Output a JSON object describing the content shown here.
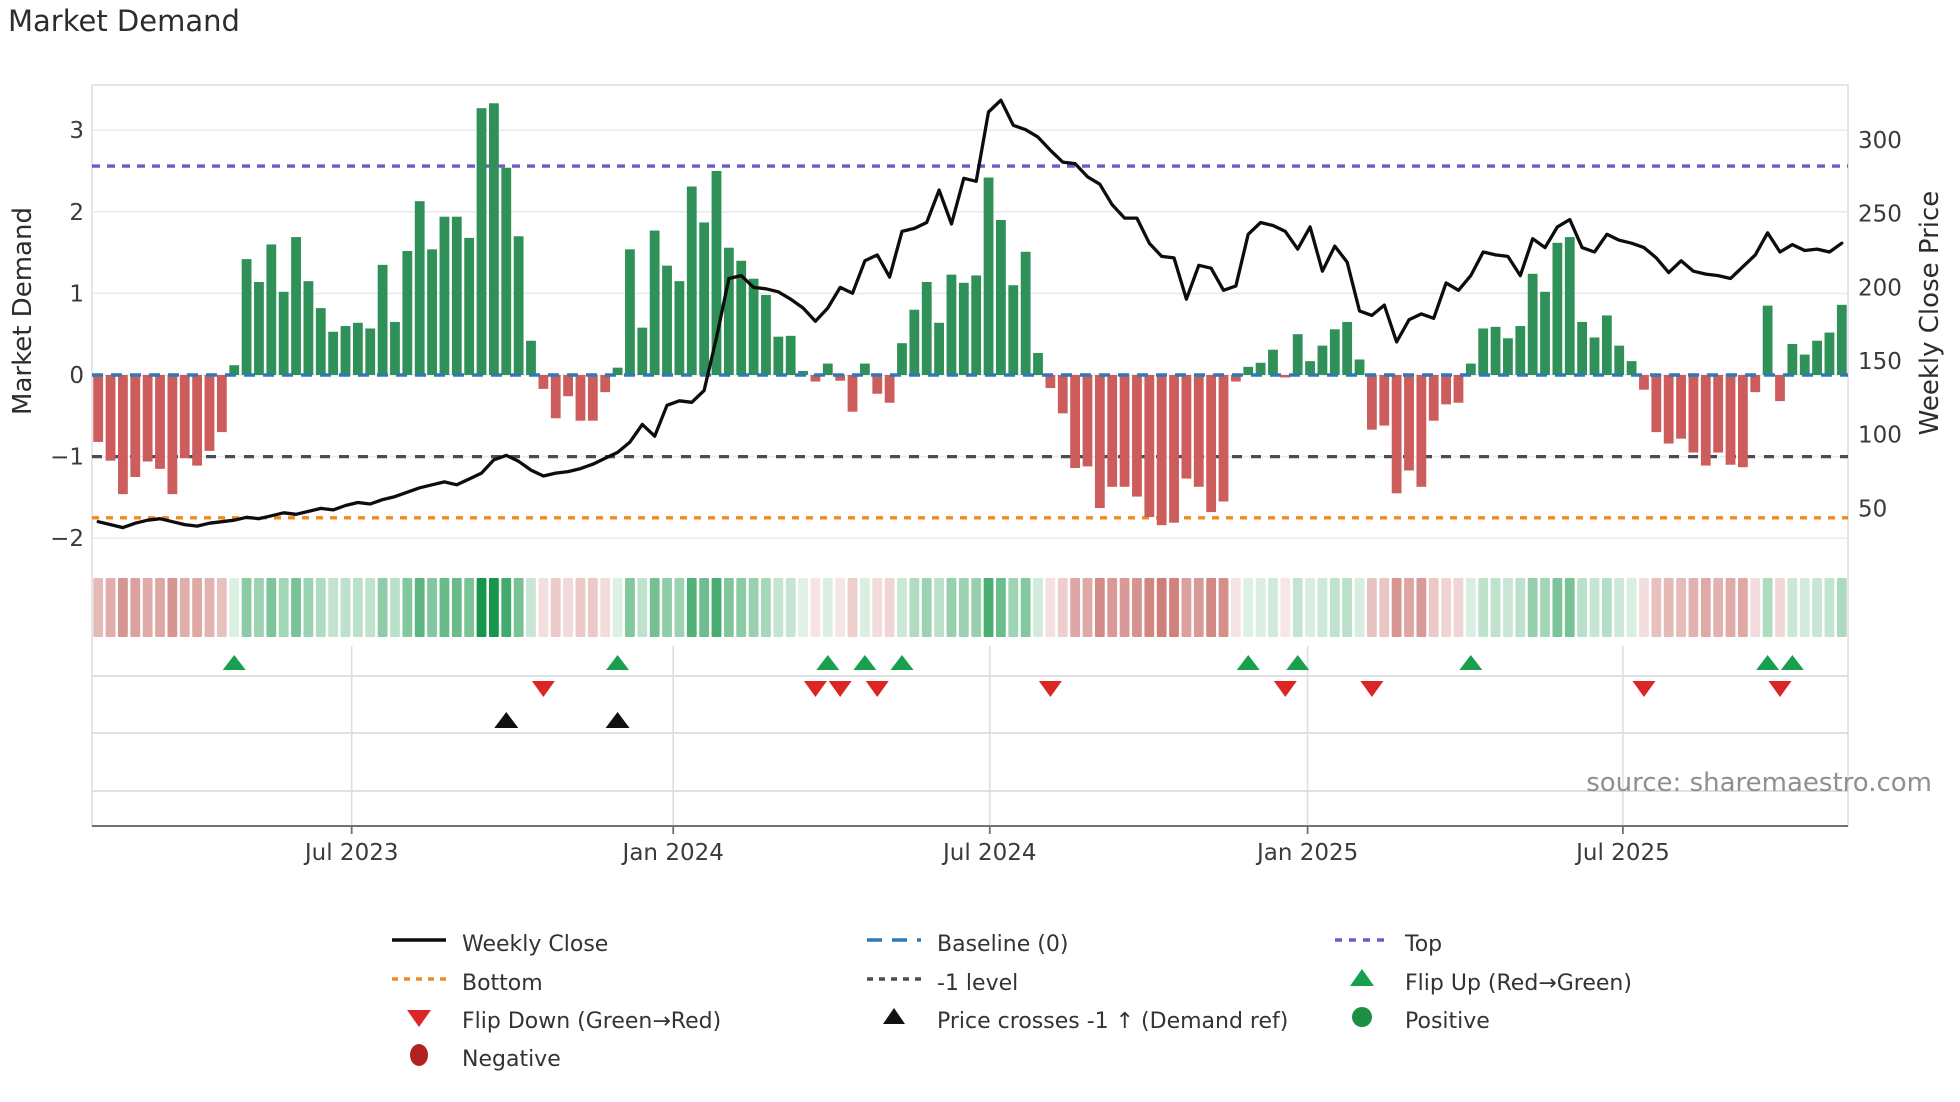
{
  "title": "Market Demand",
  "source": "source: sharemaestro.com",
  "axes": {
    "left_label": "Market Demand",
    "right_label": "Weekly Close Price",
    "left_ticks": [
      {
        "v": 3,
        "label": "3"
      },
      {
        "v": 2,
        "label": "2"
      },
      {
        "v": 1,
        "label": "1"
      },
      {
        "v": 0,
        "label": "0"
      },
      {
        "v": -1,
        "label": "−1"
      },
      {
        "v": -2,
        "label": "−2"
      }
    ],
    "right_ticks": [
      {
        "v": 300,
        "label": "300"
      },
      {
        "v": 250,
        "label": "250"
      },
      {
        "v": 200,
        "label": "200"
      },
      {
        "v": 150,
        "label": "150"
      },
      {
        "v": 100,
        "label": "100"
      },
      {
        "v": 50,
        "label": "50"
      }
    ],
    "x_ticks": [
      {
        "week": 20.5,
        "label": "Jul 2023"
      },
      {
        "week": 46.5,
        "label": "Jan 2024"
      },
      {
        "week": 72.1,
        "label": "Jul 2024"
      },
      {
        "week": 97.8,
        "label": "Jan 2025"
      },
      {
        "week": 123.3,
        "label": "Jul 2025"
      }
    ]
  },
  "colors": {
    "bar_positive": "#2f9058",
    "bar_negative": "#cd5c5c",
    "price_line": "#0d0d0d",
    "baseline": "#3178b4",
    "top_line": "#6a5acd",
    "bottom_line": "#f08c1e",
    "minus1_line": "#4c4c58",
    "flip_up": "#18a04e",
    "flip_down": "#dc2626",
    "price_cross": "#101010",
    "positive_dot": "#1d8f42",
    "negative_dot": "#b22222",
    "grid": "#e9e9f0",
    "band_line": "#d5d5db",
    "axis_line": "#707078",
    "heat_green_base": "#16964a",
    "heat_red_base": "#ba4640"
  },
  "chart_data": {
    "type": "bar+line",
    "x_unit": "week",
    "n_weeks": 142,
    "ylim_left": [
      -2.2,
      3.55
    ],
    "ylim_right": [
      26,
      337
    ],
    "ref_lines": {
      "baseline": 0,
      "top": 2.56,
      "bottom": -1.75,
      "minus1": -1
    },
    "series": [
      {
        "name": "Market Demand",
        "type": "bar",
        "values": [
          -0.82,
          -1.05,
          -1.46,
          -1.25,
          -1.06,
          -1.15,
          -1.46,
          -1.02,
          -1.11,
          -0.93,
          -0.7,
          0.12,
          1.42,
          1.14,
          1.6,
          1.02,
          1.69,
          1.15,
          0.82,
          0.53,
          0.6,
          0.64,
          0.57,
          1.35,
          0.65,
          1.52,
          2.13,
          1.54,
          1.94,
          1.94,
          1.68,
          3.27,
          3.33,
          2.54,
          1.7,
          0.42,
          -0.17,
          -0.53,
          -0.26,
          -0.56,
          -0.56,
          -0.21,
          0.09,
          1.54,
          0.58,
          1.77,
          1.34,
          1.15,
          2.31,
          1.87,
          2.5,
          1.56,
          1.4,
          1.18,
          0.98,
          0.47,
          0.48,
          0.05,
          -0.08,
          0.14,
          -0.07,
          -0.45,
          0.14,
          -0.23,
          -0.34,
          0.39,
          0.8,
          1.14,
          0.64,
          1.23,
          1.13,
          1.22,
          2.42,
          1.9,
          1.1,
          1.51,
          0.27,
          -0.16,
          -0.47,
          -1.14,
          -1.12,
          -1.63,
          -1.37,
          -1.37,
          -1.49,
          -1.74,
          -1.84,
          -1.81,
          -1.27,
          -1.37,
          -1.68,
          -1.55,
          -0.08,
          0.1,
          0.15,
          0.31,
          -0.03,
          0.5,
          0.17,
          0.36,
          0.56,
          0.65,
          0.19,
          -0.67,
          -0.62,
          -1.45,
          -1.17,
          -1.37,
          -0.56,
          -0.36,
          -0.34,
          0.14,
          0.57,
          0.59,
          0.45,
          0.6,
          1.24,
          1.02,
          1.62,
          1.69,
          0.65,
          0.46,
          0.73,
          0.36,
          0.17,
          -0.18,
          -0.7,
          -0.84,
          -0.78,
          -0.95,
          -1.11,
          -0.95,
          -1.1,
          -1.13,
          -0.21,
          0.85,
          -0.32,
          0.38,
          0.25,
          0.42,
          0.52,
          0.86
        ]
      },
      {
        "name": "Weekly Close",
        "type": "line",
        "values": [
          41,
          39,
          37,
          40,
          42,
          43,
          41,
          39,
          38,
          40,
          41,
          42,
          44,
          43,
          45,
          47,
          46,
          48,
          50,
          49,
          52,
          54,
          53,
          56,
          58,
          61,
          64,
          66,
          68,
          66,
          70,
          74,
          83,
          86,
          82,
          76,
          72,
          74,
          75,
          77,
          80,
          84,
          88,
          95,
          107,
          99,
          120,
          123,
          122,
          130,
          166,
          206,
          208,
          200,
          199,
          197,
          192,
          186,
          177,
          186,
          200,
          196,
          218,
          222,
          207,
          238,
          240,
          244,
          266,
          243,
          274,
          272,
          319,
          327,
          310,
          307,
          302,
          293,
          285,
          284,
          275,
          270,
          256,
          247,
          247,
          230,
          221,
          220,
          192,
          215,
          213,
          198,
          201,
          236,
          244,
          242,
          238,
          226,
          241,
          211,
          228,
          217,
          184,
          181,
          188,
          163,
          178,
          182,
          179,
          203,
          198,
          208,
          224,
          222,
          221,
          208,
          233,
          227,
          241,
          246,
          227,
          224,
          236,
          232,
          230,
          227,
          220,
          210,
          218,
          211,
          209,
          208,
          206,
          214,
          222,
          237,
          224,
          229,
          225,
          226,
          224,
          230
        ]
      }
    ],
    "markers": {
      "flip_up_weeks": [
        11,
        42,
        59,
        62,
        65,
        93,
        97,
        111,
        135,
        137
      ],
      "flip_down_weeks": [
        36,
        58,
        60,
        63,
        77,
        96,
        103,
        125,
        136
      ],
      "price_cross_weeks": [
        33,
        42
      ]
    },
    "heatmap": {
      "note": "weekly demand values rendered as color strip",
      "source_series": "Market Demand"
    }
  },
  "legend": {
    "columns": [
      {
        "items": [
          {
            "marker": "line-black",
            "label": "Weekly Close"
          },
          {
            "marker": "dots-orange",
            "label": "Bottom"
          },
          {
            "marker": "tri-down-red",
            "label": "Flip Down (Green→Red)"
          },
          {
            "marker": "dot-darkred",
            "label": "Negative"
          }
        ]
      },
      {
        "items": [
          {
            "marker": "dash-blue",
            "label": "Baseline (0)"
          },
          {
            "marker": "dots-gray",
            "label": "-1 level"
          },
          {
            "marker": "tri-up-black",
            "label": "Price crosses -1 ↑ (Demand ref)"
          }
        ]
      },
      {
        "items": [
          {
            "marker": "dots-purple",
            "label": "Top"
          },
          {
            "marker": "tri-up-green",
            "label": "Flip Up (Red→Green)"
          },
          {
            "marker": "dot-green",
            "label": "Positive"
          }
        ]
      }
    ]
  }
}
